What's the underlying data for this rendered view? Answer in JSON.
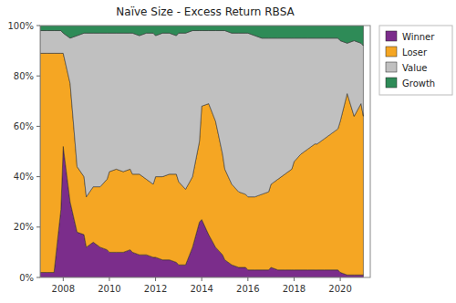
{
  "chart_data": {
    "type": "area",
    "stacked": true,
    "title": "Naïve Size - Excess Return RBSA",
    "x": [
      2007.0,
      2007.3,
      2007.6,
      2007.9,
      2008.0,
      2008.3,
      2008.6,
      2008.9,
      2009.0,
      2009.3,
      2009.6,
      2009.9,
      2010.0,
      2010.3,
      2010.6,
      2010.9,
      2011.0,
      2011.3,
      2011.6,
      2011.9,
      2012.0,
      2012.3,
      2012.6,
      2012.9,
      2013.0,
      2013.3,
      2013.6,
      2013.9,
      2014.0,
      2014.3,
      2014.6,
      2014.9,
      2015.0,
      2015.3,
      2015.6,
      2015.9,
      2016.0,
      2016.3,
      2016.6,
      2016.9,
      2017.0,
      2017.3,
      2017.6,
      2017.9,
      2018.0,
      2018.3,
      2018.6,
      2018.9,
      2019.0,
      2019.3,
      2019.6,
      2019.9,
      2020.0,
      2020.3,
      2020.6,
      2020.9,
      2021.0
    ],
    "series": [
      {
        "name": "Winner",
        "color": "#7B2D8B",
        "values": [
          0.02,
          0.02,
          0.02,
          0.27,
          0.52,
          0.3,
          0.18,
          0.17,
          0.12,
          0.14,
          0.12,
          0.11,
          0.1,
          0.1,
          0.1,
          0.11,
          0.1,
          0.09,
          0.09,
          0.08,
          0.08,
          0.07,
          0.07,
          0.06,
          0.05,
          0.05,
          0.12,
          0.22,
          0.23,
          0.17,
          0.12,
          0.09,
          0.07,
          0.05,
          0.04,
          0.04,
          0.03,
          0.03,
          0.03,
          0.03,
          0.04,
          0.03,
          0.03,
          0.03,
          0.03,
          0.03,
          0.03,
          0.03,
          0.03,
          0.03,
          0.03,
          0.03,
          0.02,
          0.01,
          0.01,
          0.01,
          0.01
        ]
      },
      {
        "name": "Loser",
        "color": "#F5A623",
        "values": [
          0.87,
          0.87,
          0.87,
          0.62,
          0.37,
          0.47,
          0.26,
          0.23,
          0.2,
          0.22,
          0.24,
          0.28,
          0.32,
          0.33,
          0.32,
          0.32,
          0.31,
          0.32,
          0.3,
          0.29,
          0.32,
          0.33,
          0.34,
          0.35,
          0.33,
          0.3,
          0.28,
          0.32,
          0.45,
          0.52,
          0.5,
          0.4,
          0.36,
          0.32,
          0.3,
          0.29,
          0.29,
          0.29,
          0.3,
          0.31,
          0.33,
          0.36,
          0.38,
          0.4,
          0.43,
          0.46,
          0.48,
          0.5,
          0.5,
          0.52,
          0.54,
          0.56,
          0.6,
          0.72,
          0.63,
          0.68,
          0.63
        ]
      },
      {
        "name": "Value",
        "color": "#C0C0C0",
        "values": [
          0.09,
          0.09,
          0.09,
          0.09,
          0.08,
          0.18,
          0.52,
          0.57,
          0.65,
          0.61,
          0.61,
          0.58,
          0.55,
          0.54,
          0.55,
          0.54,
          0.56,
          0.55,
          0.58,
          0.6,
          0.56,
          0.57,
          0.56,
          0.55,
          0.59,
          0.62,
          0.58,
          0.44,
          0.3,
          0.29,
          0.36,
          0.49,
          0.55,
          0.6,
          0.63,
          0.64,
          0.65,
          0.64,
          0.62,
          0.61,
          0.58,
          0.56,
          0.54,
          0.52,
          0.49,
          0.46,
          0.44,
          0.42,
          0.42,
          0.4,
          0.38,
          0.36,
          0.32,
          0.2,
          0.3,
          0.24,
          0.28
        ]
      },
      {
        "name": "Growth",
        "color": "#2E8B57",
        "values": [
          0.02,
          0.02,
          0.02,
          0.02,
          0.03,
          0.05,
          0.04,
          0.03,
          0.03,
          0.03,
          0.03,
          0.03,
          0.03,
          0.03,
          0.03,
          0.03,
          0.03,
          0.04,
          0.03,
          0.03,
          0.04,
          0.03,
          0.03,
          0.04,
          0.03,
          0.03,
          0.02,
          0.02,
          0.02,
          0.02,
          0.02,
          0.02,
          0.02,
          0.03,
          0.03,
          0.03,
          0.03,
          0.04,
          0.05,
          0.05,
          0.05,
          0.05,
          0.05,
          0.05,
          0.05,
          0.05,
          0.05,
          0.05,
          0.05,
          0.05,
          0.05,
          0.05,
          0.06,
          0.07,
          0.06,
          0.07,
          0.08
        ]
      }
    ],
    "xlim": [
      2007.0,
      2021.3
    ],
    "ylim": [
      0,
      1.0
    ],
    "xticks": [
      2008,
      2010,
      2012,
      2014,
      2016,
      2018,
      2020
    ],
    "yticks": [
      {
        "value": 0.0,
        "label": "0%"
      },
      {
        "value": 0.2,
        "label": "20%"
      },
      {
        "value": 0.4,
        "label": "40%"
      },
      {
        "value": 0.6,
        "label": "60%"
      },
      {
        "value": 0.8,
        "label": "80%"
      },
      {
        "value": 1.0,
        "label": "100%"
      }
    ],
    "grid": false,
    "legend": "upper right"
  }
}
